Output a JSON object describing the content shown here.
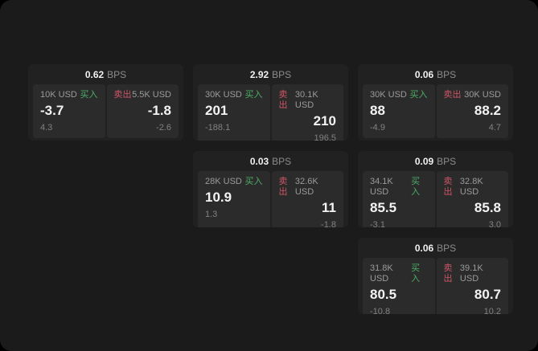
{
  "labels": {
    "bps_unit": "BPS",
    "buy": "买入",
    "sell": "卖出"
  },
  "colors": {
    "page_outer": "#000000",
    "window_bg": "#1b1b1b",
    "card_bg": "#212121",
    "panel_bg": "#2b2b2b",
    "buy_green": "#4cae66",
    "sell_red": "#cd5566",
    "text_primary": "#f3f3f3",
    "text_muted": "#9b9b9b",
    "text_sub": "#818181"
  },
  "cards": [
    {
      "bps": "0.62",
      "buy": {
        "size": "10K USD",
        "price": "-3.7",
        "sub": "4.3"
      },
      "sell": {
        "size": "5.5K USD",
        "price": "-1.8",
        "sub": "-2.6"
      }
    },
    {
      "bps": "2.92",
      "buy": {
        "size": "30K USD",
        "price": "201",
        "sub": "-188.1"
      },
      "sell": {
        "size": "30.1K USD",
        "price": "210",
        "sub": "196.5"
      }
    },
    {
      "bps": "0.06",
      "buy": {
        "size": "30K USD",
        "price": "88",
        "sub": "-4.9"
      },
      "sell": {
        "size": "30K USD",
        "price": "88.2",
        "sub": "4.7"
      }
    },
    {
      "bps": "0.03",
      "buy": {
        "size": "28K USD",
        "price": "10.9",
        "sub": "1.3"
      },
      "sell": {
        "size": "32.6K USD",
        "price": "11",
        "sub": "-1.8"
      }
    },
    {
      "bps": "0.09",
      "buy": {
        "size": "34.1K USD",
        "price": "85.5",
        "sub": "-3.1"
      },
      "sell": {
        "size": "32.8K USD",
        "price": "85.8",
        "sub": "3.0"
      }
    },
    {
      "bps": "0.06",
      "buy": {
        "size": "31.8K USD",
        "price": "80.5",
        "sub": "-10.8"
      },
      "sell": {
        "size": "39.1K USD",
        "price": "80.7",
        "sub": "10.2"
      }
    }
  ]
}
